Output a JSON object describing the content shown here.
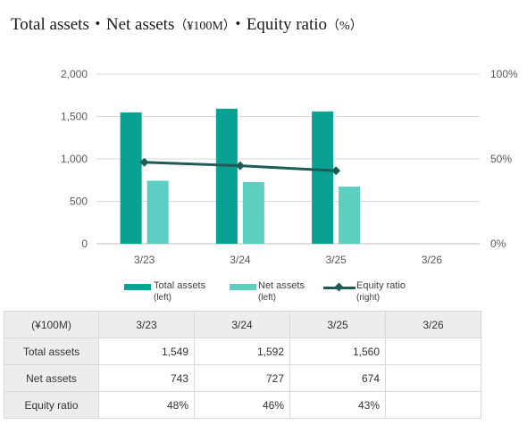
{
  "title": {
    "main": "Total assets・Net assets",
    "unit": "（¥100M）",
    "second": "・Equity ratio",
    "pct": "（%）"
  },
  "chart_data": {
    "type": "bar",
    "categories": [
      "3/23",
      "3/24",
      "3/25",
      "3/26"
    ],
    "series": [
      {
        "name": "Total assets",
        "sub": "(left)",
        "kind": "bar",
        "axis": "left",
        "color": "#0aa195",
        "values": [
          1549,
          1592,
          1560,
          null
        ]
      },
      {
        "name": "Net assets",
        "sub": "(left)",
        "kind": "bar",
        "axis": "left",
        "color": "#5ccfc0",
        "values": [
          743,
          727,
          674,
          null
        ]
      },
      {
        "name": "Equity ratio",
        "sub": "(right)",
        "kind": "line",
        "axis": "right",
        "color": "#1e5c56",
        "values": [
          48,
          46,
          43,
          null
        ]
      }
    ],
    "ylim": [
      0,
      2000
    ],
    "y_ticks": [
      "0",
      "500",
      "1,000",
      "1,500",
      "2,000"
    ],
    "y2lim": [
      0,
      100
    ],
    "y2_ticks": [
      "0%",
      "50%",
      "100%"
    ],
    "grid": true,
    "legend": "bottom"
  },
  "table": {
    "header": [
      "(¥100M)",
      "3/23",
      "3/24",
      "3/25",
      "3/26"
    ],
    "rows": [
      {
        "label": "Total assets",
        "values": [
          "1,549",
          "1,592",
          "1,560",
          ""
        ]
      },
      {
        "label": "Net assets",
        "values": [
          "743",
          "727",
          "674",
          ""
        ]
      },
      {
        "label": "Equity ratio",
        "values": [
          "48%",
          "46%",
          "43%",
          ""
        ]
      }
    ]
  }
}
